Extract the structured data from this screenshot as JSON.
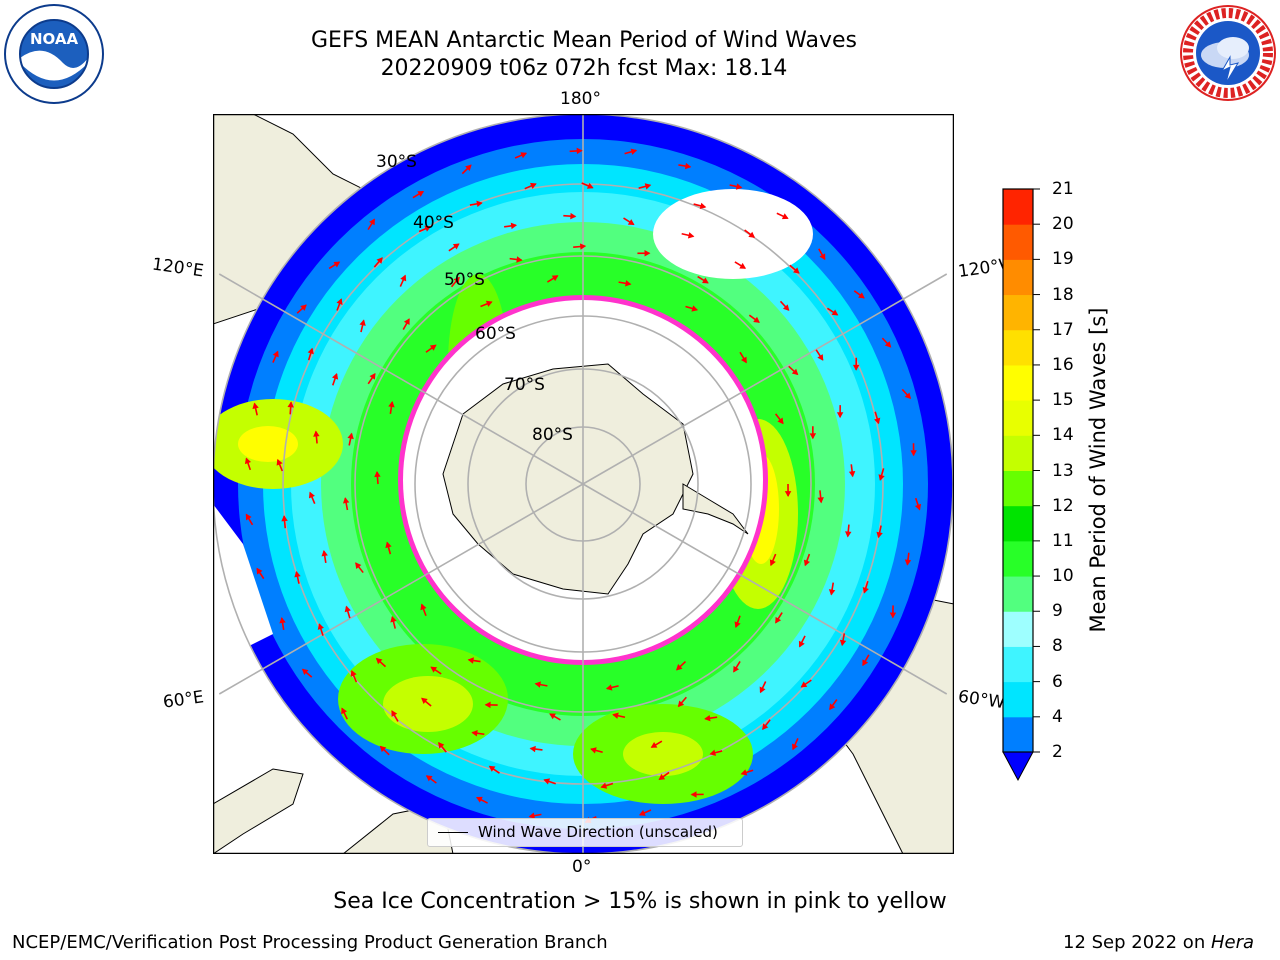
{
  "title": {
    "line1": "GEFS MEAN Antarctic Mean Period of Wind Waves",
    "line2": "20220909 t06z 072h fcst   Max: 18.14"
  },
  "logos": {
    "left": {
      "name": "noaa-logo",
      "text": "NOAA"
    },
    "right": {
      "name": "nws-logo",
      "ring_text": "NATIONAL WEATHER SERVICE"
    }
  },
  "map": {
    "projection": "south-polar-stereographic",
    "longitude_labels": {
      "top": "180°",
      "bottom": "0°",
      "left_upper": "120°E",
      "left_lower": "60°E",
      "right_upper": "120°W",
      "right_lower": "60°W"
    },
    "latitude_labels": [
      "30°S",
      "40°S",
      "50°S",
      "60°S",
      "70°S",
      "80°S"
    ],
    "colors": {
      "land": "#efeedd",
      "ocean_unshaded": "#ffffff",
      "grid": "#b0b0b0",
      "vector": "#ff0000",
      "sea_ice_edge": "#ff33cc",
      "sea_ice_fill": "#ffb347"
    }
  },
  "colorbar": {
    "label": "Mean Period of Wind Waves [s]",
    "ticks": [
      "2",
      "4",
      "6",
      "8",
      "9",
      "10",
      "11",
      "12",
      "13",
      "14",
      "15",
      "16",
      "17",
      "18",
      "19",
      "20",
      "21"
    ],
    "colors": [
      "#0000ff",
      "#007fff",
      "#00e5ff",
      "#3ff4ff",
      "#9effff",
      "#52ff7f",
      "#28ff28",
      "#00e400",
      "#66ff00",
      "#c4ff00",
      "#e8ff00",
      "#fffe00",
      "#ffe000",
      "#ffb400",
      "#ff8c00",
      "#ff5a00",
      "#ff2400",
      "#ff0000"
    ],
    "extend": "min",
    "extend_color": "#0000ff"
  },
  "legend": {
    "entry": "Wind Wave Direction (unscaled)"
  },
  "note": "Sea Ice Concentration > 15% is shown in pink to yellow",
  "footer": {
    "left": "NCEP/EMC/Verification Post Processing Product Generation Branch",
    "right_date": "12 Sep 2022 on ",
    "right_host": "Hera"
  }
}
